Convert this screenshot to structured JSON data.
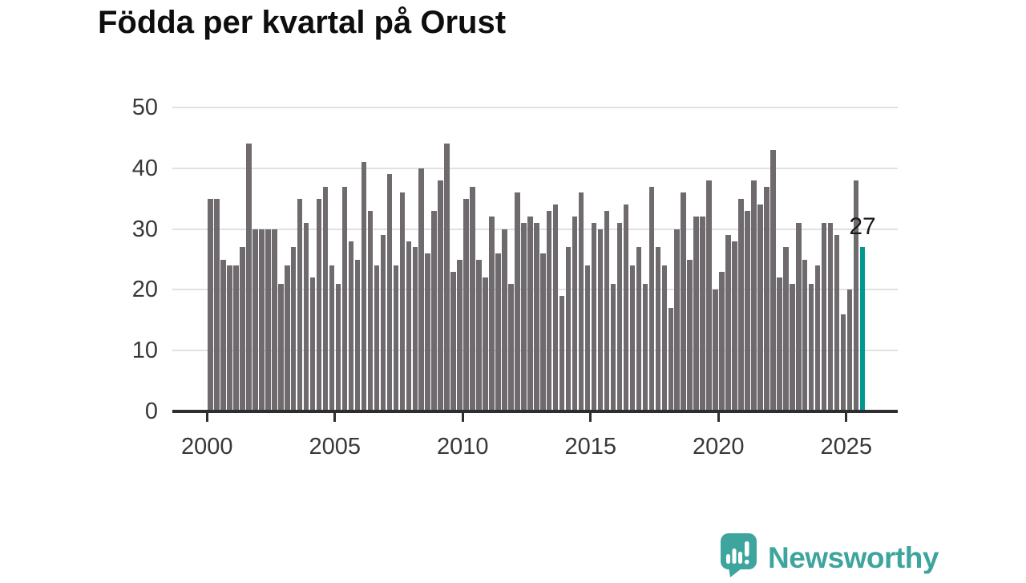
{
  "title": "Födda per kvartal på Orust",
  "chart_data": {
    "type": "bar",
    "title": "Födda per kvartal på Orust",
    "xlabel": "",
    "ylabel": "",
    "x_unit": "quarter",
    "start_period": "2000-Q1",
    "end_period": "2025-Q3",
    "ylim": [
      0,
      50
    ],
    "grid": "horizontal",
    "y_ticks": [
      0,
      10,
      20,
      30,
      40,
      50
    ],
    "x_tick_labels": [
      "2000",
      "2005",
      "2010",
      "2015",
      "2020",
      "2025"
    ],
    "series": [
      {
        "name": "Födda per kvartal",
        "values": [
          35,
          35,
          25,
          24,
          24,
          27,
          44,
          30,
          30,
          30,
          30,
          21,
          24,
          27,
          35,
          31,
          22,
          35,
          37,
          24,
          21,
          37,
          28,
          25,
          41,
          33,
          24,
          29,
          39,
          24,
          36,
          28,
          27,
          40,
          26,
          33,
          38,
          44,
          23,
          25,
          35,
          37,
          25,
          22,
          32,
          26,
          30,
          21,
          36,
          31,
          32,
          31,
          26,
          33,
          34,
          19,
          27,
          32,
          36,
          24,
          31,
          30,
          33,
          21,
          31,
          34,
          24,
          27,
          21,
          37,
          27,
          24,
          17,
          30,
          36,
          25,
          32,
          32,
          38,
          20,
          23,
          29,
          28,
          35,
          33,
          38,
          34,
          37,
          43,
          22,
          27,
          21,
          31,
          25,
          21,
          24,
          31,
          31,
          29,
          16,
          20,
          38,
          27
        ]
      }
    ],
    "highlight": {
      "index": 102,
      "value": 27,
      "label": "27"
    },
    "colors": {
      "bar": "#6e6a6e",
      "highlight": "#009890",
      "gridline": "#e1e1e1",
      "axis": "#2e2e2e",
      "text": "#383838"
    }
  },
  "annotation": {
    "label": "27"
  },
  "branding": {
    "wordmark": "Newsworthy",
    "icon": "newsworthy-chart-bubble-icon",
    "color": "#3da59d"
  }
}
